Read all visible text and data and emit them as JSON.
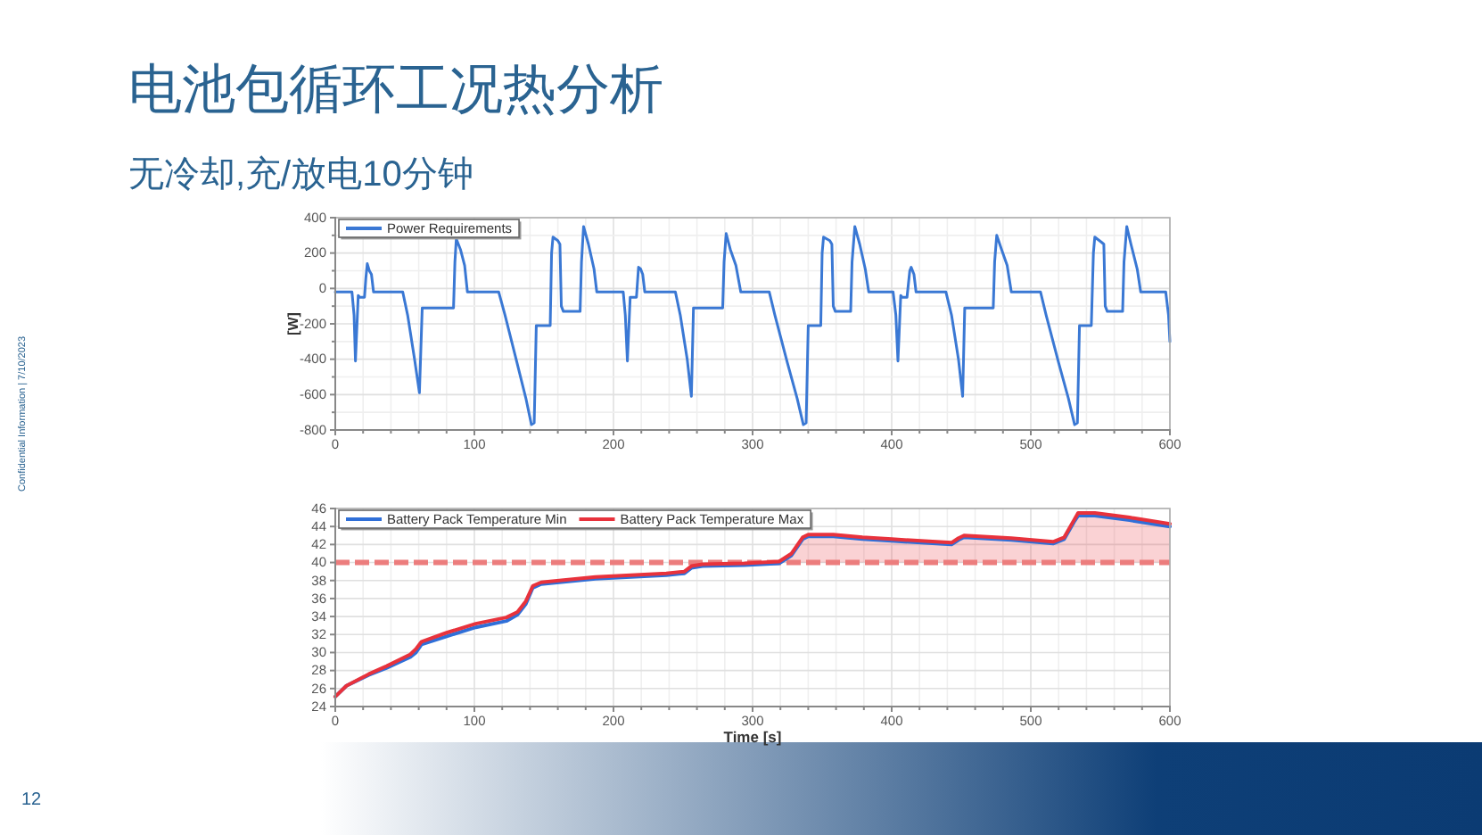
{
  "chart_data": [
    {
      "type": "line",
      "title": "电池包循环工况热分析",
      "subtitle": "无冷却,充/放电10分钟",
      "ylabel": "[W]",
      "annotations": [
        "12",
        "Confidential Information | 7/10/2023"
      ],
      "xlim": [
        0,
        600
      ],
      "xticks": [
        0,
        {
          "value": 20,
          "label": null
        },
        {
          "value": 40,
          "label": null
        },
        {
          "value": 60,
          "label": null
        },
        {
          "value": 80,
          "label": null
        },
        100,
        {
          "value": 120,
          "label": null
        },
        {
          "value": 140,
          "label": null
        },
        {
          "value": 160,
          "label": null
        },
        {
          "value": 180,
          "label": null
        },
        200,
        {
          "value": 220,
          "label": null
        },
        {
          "value": 240,
          "label": null
        },
        {
          "value": 260,
          "label": null
        },
        {
          "value": 280,
          "label": null
        },
        300,
        {
          "value": 320,
          "label": null
        },
        {
          "value": 340,
          "label": null
        },
        {
          "value": 360,
          "label": null
        },
        {
          "value": 380,
          "label": null
        },
        400,
        {
          "value": 420,
          "label": null
        },
        {
          "value": 440,
          "label": null
        },
        {
          "value": 460,
          "label": null
        },
        {
          "value": 480,
          "label": null
        },
        500,
        {
          "value": 520,
          "label": null
        },
        {
          "value": 540,
          "label": null
        },
        {
          "value": 560,
          "label": null
        },
        {
          "value": 580,
          "label": null
        },
        600
      ],
      "ylim": [
        -800,
        400
      ],
      "yticks": [
        -800,
        {
          "value": -700,
          "label": null
        },
        -600,
        {
          "value": -500,
          "label": null
        },
        -400,
        {
          "value": -300,
          "label": null
        },
        -200,
        {
          "value": -100,
          "label": null
        },
        0,
        {
          "value": 100,
          "label": null
        },
        200,
        {
          "value": 300,
          "label": null
        },
        400
      ],
      "grid": true,
      "legend": "top left",
      "series": [
        {
          "name": "Power Requirements",
          "color": "#3a78d4",
          "x": [
            0,
            12,
            13.5,
            14.5,
            16.5,
            17.5,
            21,
            22,
            23,
            24.5,
            26,
            27.5,
            48.5,
            52,
            57,
            60.5,
            62.5,
            63.5,
            85,
            86,
            87,
            90,
            93,
            95,
            117.5,
            122,
            130,
            137,
            141,
            143,
            144.5,
            154.5,
            155.5,
            156.5,
            160,
            161.5,
            162.5,
            164,
            176,
            177,
            178.5,
            182,
            186,
            188,
            207,
            208.5,
            210,
            212,
            213,
            216.5,
            218,
            219.5,
            221,
            222.5,
            244.5,
            248,
            253,
            256,
            257.5,
            258.5,
            278.5,
            279.5,
            281,
            284,
            288,
            291.5,
            312,
            316,
            325,
            332,
            336.5,
            338.5,
            340,
            349,
            350,
            351,
            355.5,
            357,
            358,
            359.5,
            370.5,
            371.5,
            373.5,
            377,
            381,
            383.5,
            401,
            403,
            404.5,
            406.5,
            407.5,
            411,
            413,
            414,
            416,
            417.5,
            439,
            443,
            448,
            451,
            452.5,
            453.5,
            473,
            474,
            475.5,
            479,
            483,
            486,
            507,
            511,
            520,
            527,
            531.5,
            533.5,
            535,
            543.5,
            545,
            546,
            551,
            552.5,
            553.5,
            555,
            566,
            567,
            569,
            572,
            576.5,
            579,
            597,
            599,
            600
          ],
          "values": [
            -20,
            -20,
            -150,
            -410,
            -40,
            -50,
            -50,
            60,
            140,
            100,
            80,
            -20,
            -20,
            -150,
            -400,
            -590,
            -110,
            -110,
            -110,
            150,
            280,
            220,
            130,
            -20,
            -20,
            -150,
            -400,
            -620,
            -770,
            -760,
            -210,
            -210,
            200,
            290,
            270,
            250,
            -100,
            -130,
            -130,
            150,
            350,
            250,
            110,
            -20,
            -20,
            -150,
            -410,
            -50,
            -50,
            -50,
            120,
            110,
            80,
            -20,
            -20,
            -150,
            -400,
            -610,
            -110,
            -110,
            -110,
            150,
            310,
            220,
            130,
            -20,
            -20,
            -150,
            -420,
            -620,
            -770,
            -760,
            -210,
            -210,
            200,
            290,
            270,
            250,
            -100,
            -130,
            -130,
            150,
            350,
            250,
            110,
            -20,
            -20,
            -150,
            -410,
            -40,
            -50,
            -50,
            100,
            120,
            80,
            -20,
            -20,
            -150,
            -400,
            -610,
            -110,
            -110,
            -110,
            150,
            300,
            220,
            130,
            -20,
            -20,
            -150,
            -420,
            -620,
            -770,
            -760,
            -210,
            -210,
            200,
            290,
            260,
            250,
            -100,
            -130,
            -130,
            150,
            350,
            250,
            110,
            -20,
            -20,
            -150,
            -300
          ]
        }
      ]
    },
    {
      "type": "line",
      "xlabel": "Time [s]",
      "xlim": [
        0,
        600
      ],
      "xticks": [
        0,
        {
          "value": 20,
          "label": null
        },
        {
          "value": 40,
          "label": null
        },
        {
          "value": 60,
          "label": null
        },
        {
          "value": 80,
          "label": null
        },
        100,
        {
          "value": 120,
          "label": null
        },
        {
          "value": 140,
          "label": null
        },
        {
          "value": 160,
          "label": null
        },
        {
          "value": 180,
          "label": null
        },
        200,
        {
          "value": 220,
          "label": null
        },
        {
          "value": 240,
          "label": null
        },
        {
          "value": 260,
          "label": null
        },
        {
          "value": 280,
          "label": null
        },
        300,
        {
          "value": 320,
          "label": null
        },
        {
          "value": 340,
          "label": null
        },
        {
          "value": 360,
          "label": null
        },
        {
          "value": 380,
          "label": null
        },
        400,
        {
          "value": 420,
          "label": null
        },
        {
          "value": 440,
          "label": null
        },
        {
          "value": 460,
          "label": null
        },
        {
          "value": 480,
          "label": null
        },
        500,
        {
          "value": 520,
          "label": null
        },
        {
          "value": 540,
          "label": null
        },
        {
          "value": 560,
          "label": null
        },
        {
          "value": 580,
          "label": null
        },
        600
      ],
      "ylim": [
        24,
        46
      ],
      "yticks": [
        24,
        26,
        28,
        30,
        32,
        34,
        36,
        38,
        40,
        42,
        44,
        46
      ],
      "grid": true,
      "legend": "top left",
      "x": [
        0,
        8,
        24,
        37,
        54,
        58,
        62,
        80,
        101,
        123,
        131,
        137,
        142,
        148,
        187,
        238,
        251,
        256,
        264,
        294,
        319,
        328,
        336,
        340,
        358,
        379,
        400,
        443,
        448,
        452,
        486,
        516,
        524,
        531,
        534,
        546,
        571,
        600
      ],
      "series": [
        {
          "name": "Battery Pack Temperature Min",
          "color": "#2f6fd8",
          "values": [
            25.1,
            26.3,
            27.5,
            28.3,
            29.5,
            30.0,
            30.9,
            31.8,
            32.8,
            33.5,
            34.2,
            35.4,
            37.2,
            37.6,
            38.2,
            38.6,
            38.8,
            39.4,
            39.6,
            39.7,
            39.9,
            40.8,
            42.6,
            42.9,
            42.9,
            42.6,
            42.4,
            42.0,
            42.5,
            42.8,
            42.5,
            42.1,
            42.6,
            44.5,
            45.2,
            45.2,
            44.7,
            44.0
          ]
        },
        {
          "name": "Battery Pack Temperature Max",
          "color": "#e8323c",
          "values": [
            25.1,
            26.3,
            27.6,
            28.5,
            29.8,
            30.4,
            31.2,
            32.2,
            33.2,
            33.9,
            34.5,
            35.7,
            37.4,
            37.8,
            38.4,
            38.8,
            39.0,
            39.6,
            39.8,
            39.9,
            40.1,
            41.0,
            42.8,
            43.1,
            43.1,
            42.8,
            42.6,
            42.2,
            42.7,
            43.0,
            42.7,
            42.3,
            42.8,
            44.7,
            45.5,
            45.5,
            45.0,
            44.3
          ],
          "lower": [
            null,
            null,
            null,
            null,
            null,
            null,
            null,
            null,
            null,
            null,
            null,
            null,
            null,
            null,
            null,
            null,
            null,
            null,
            null,
            null,
            40,
            40,
            40,
            40,
            40,
            40,
            40,
            40,
            40,
            40,
            40,
            40,
            40,
            40,
            40,
            40,
            40,
            40
          ],
          "upper": [
            null,
            null,
            null,
            null,
            null,
            null,
            null,
            null,
            null,
            null,
            null,
            null,
            null,
            null,
            null,
            null,
            null,
            null,
            null,
            null,
            40.1,
            41.0,
            42.8,
            43.1,
            43.1,
            42.8,
            42.6,
            42.2,
            42.7,
            43.0,
            42.7,
            42.3,
            42.8,
            44.7,
            45.5,
            45.5,
            45.0,
            44.3
          ]
        }
      ],
      "ref_lines": [
        {
          "axis": "y",
          "value": 40,
          "color": "#ec7d7d",
          "line_style": "dashed"
        }
      ]
    }
  ]
}
